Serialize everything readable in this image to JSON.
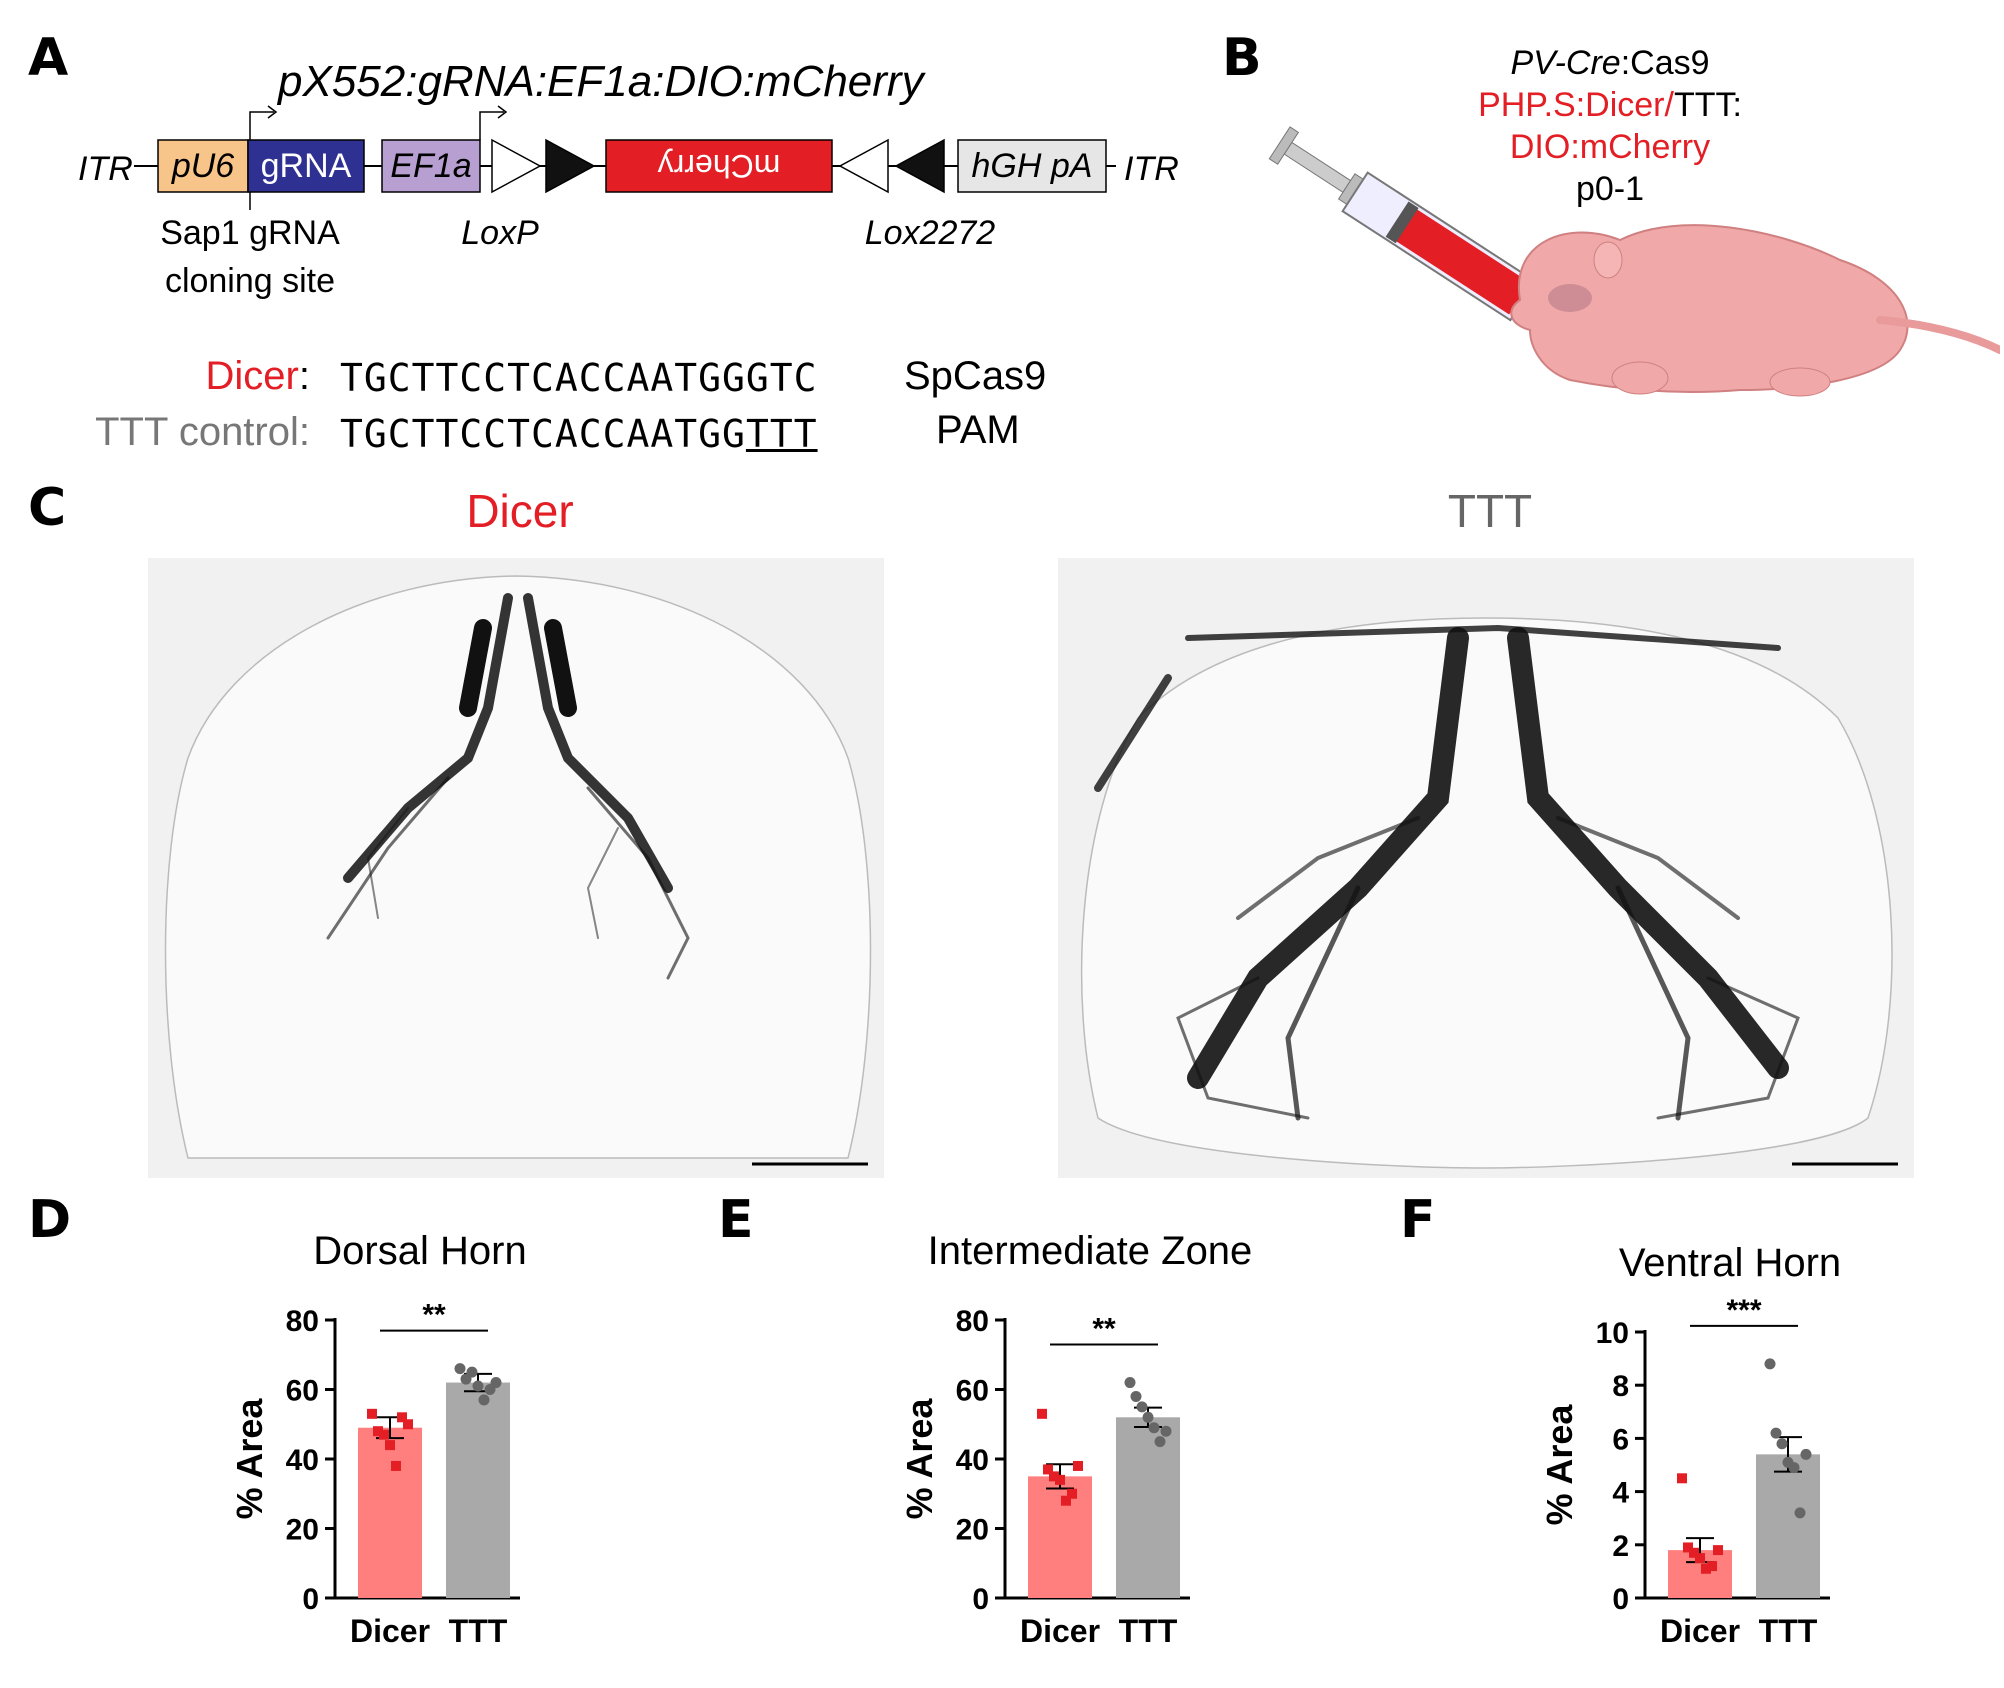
{
  "panels": {
    "a": "A",
    "b": "B",
    "c": "C",
    "d": "D",
    "e": "E",
    "f": "F"
  },
  "construct": {
    "title": "pX552:gRNA:EF1a:DIO:mCherry",
    "itr_left": "ITR",
    "itr_right": "ITR",
    "pu6": "pU6",
    "grna": "gRNA",
    "ef1a": "EF1a",
    "mcherry": "mCherry",
    "hghpa": "hGH pA",
    "cloning_site_line1": "Sap1 gRNA",
    "cloning_site_line2": "cloning site",
    "loxp": "LoxP",
    "lox2272": "Lox2272",
    "colors": {
      "pu6": "#f7c48a",
      "grna": "#2e3192",
      "ef1a": "#b79fd1",
      "mcherry": "#e31e24",
      "hghpa": "#e6e6e6"
    }
  },
  "sequences": {
    "dicer_label": "Dicer",
    "dicer_seq": "TGCTTCCTCACCAATGGGTC",
    "ttt_label": "TTT control",
    "ttt_seq_prefix": "TGCTTCCTCACCAATGG",
    "ttt_seq_underlined": "TTT",
    "pam_line1": "SpCas9",
    "pam_line2": "PAM"
  },
  "injection": {
    "line1_italic": "PV-Cre",
    "line1_rest": ":Cas9",
    "line2_red": "PHP.S:Dicer/",
    "line2_black": "TTT:",
    "line3": "DIO:mCherry",
    "line4": "p0-1"
  },
  "images": {
    "left_title": "Dicer",
    "right_title": "TTT",
    "left_title_color": "#e31e24",
    "right_title_color": "#666666"
  },
  "chart_data": [
    {
      "type": "bar",
      "title": "Dorsal Horn",
      "ylabel": "% Area",
      "categories": [
        "Dicer",
        "TTT"
      ],
      "values": [
        49,
        62
      ],
      "sem": [
        3,
        2.5
      ],
      "points": [
        [
          53,
          48,
          47,
          44,
          38,
          52,
          50
        ],
        [
          66,
          63,
          65,
          61,
          57,
          60,
          62
        ]
      ],
      "ylim": [
        0,
        80
      ],
      "yticks": [
        "0",
        "20",
        "40",
        "60",
        "80"
      ],
      "significance": "**",
      "colors": [
        "#ff7f7f",
        "#a9a9a9"
      ]
    },
    {
      "type": "bar",
      "title": "Intermediate Zone",
      "ylabel": "% Area",
      "categories": [
        "Dicer",
        "TTT"
      ],
      "values": [
        35,
        52
      ],
      "sem": [
        3.5,
        2.8
      ],
      "points": [
        [
          53,
          37,
          35,
          34,
          28,
          30,
          38
        ],
        [
          62,
          58,
          55,
          52,
          49,
          45,
          48
        ]
      ],
      "ylim": [
        0,
        80
      ],
      "yticks": [
        "0",
        "20",
        "40",
        "60",
        "80"
      ],
      "significance": "**",
      "colors": [
        "#ff7f7f",
        "#a9a9a9"
      ]
    },
    {
      "type": "bar",
      "title": "Ventral Horn",
      "ylabel": "% Area",
      "categories": [
        "Dicer",
        "TTT"
      ],
      "values": [
        1.8,
        5.4
      ],
      "sem": [
        0.45,
        0.65
      ],
      "points": [
        [
          4.5,
          1.9,
          1.7,
          1.5,
          1.1,
          1.2,
          1.8
        ],
        [
          8.8,
          6.2,
          5.8,
          5.1,
          4.9,
          3.2,
          5.4
        ]
      ],
      "ylim": [
        0,
        10
      ],
      "yticks": [
        "0",
        "2",
        "4",
        "6",
        "8",
        "10"
      ],
      "significance": "***",
      "colors": [
        "#ff7f7f",
        "#a9a9a9"
      ]
    }
  ]
}
